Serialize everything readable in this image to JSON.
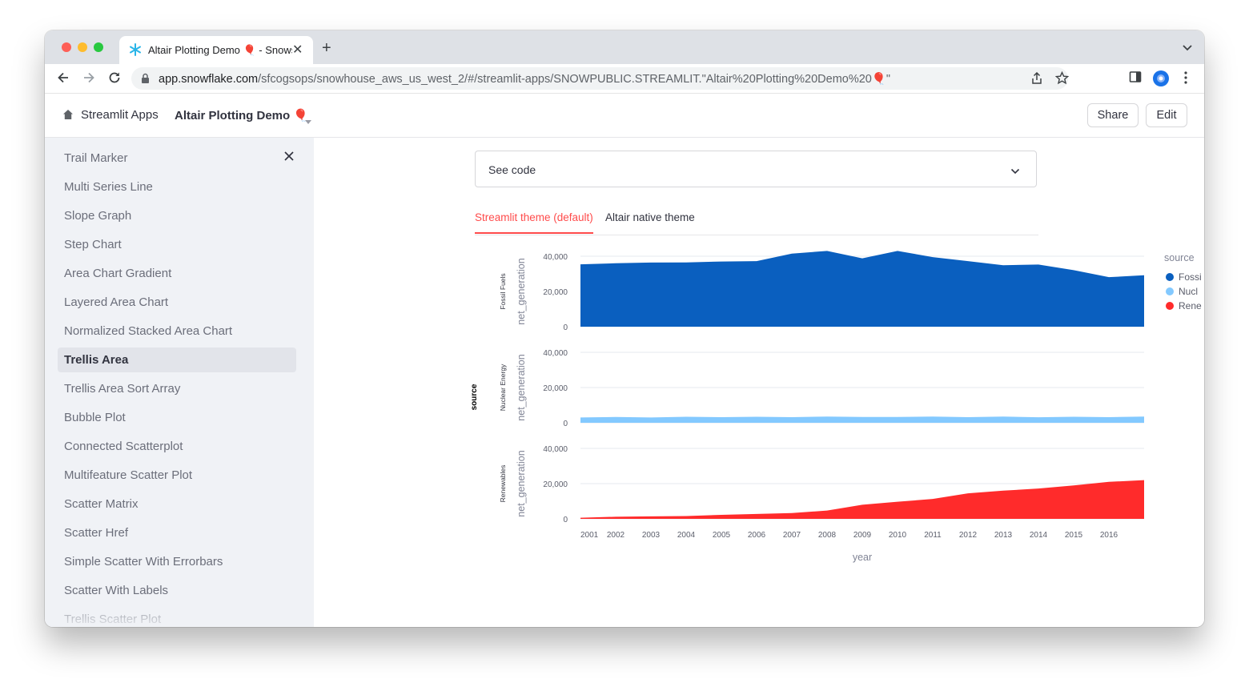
{
  "browser": {
    "tab_title": "Altair Plotting Demo 🎈 - Snowsight",
    "url_host": "app.snowflake.com",
    "url_path": "/sfcogsops/snowhouse_aws_us_west_2/#/streamlit-apps/SNOWPUBLIC.STREAMLIT.\"Altair%20Plotting%20Demo%20🎈\""
  },
  "header": {
    "home_label": "Streamlit Apps",
    "app_title": "Altair Plotting Demo 🎈",
    "share_label": "Share",
    "edit_label": "Edit"
  },
  "sidebar": {
    "items": [
      {
        "label": "Trail Marker"
      },
      {
        "label": "Multi Series Line"
      },
      {
        "label": "Slope Graph"
      },
      {
        "label": "Step Chart"
      },
      {
        "label": "Area Chart Gradient"
      },
      {
        "label": "Layered Area Chart"
      },
      {
        "label": "Normalized Stacked Area Chart"
      },
      {
        "label": "Trellis Area",
        "active": true
      },
      {
        "label": "Trellis Area Sort Array"
      },
      {
        "label": "Bubble Plot"
      },
      {
        "label": "Connected Scatterplot"
      },
      {
        "label": "Multifeature Scatter Plot"
      },
      {
        "label": "Scatter Matrix"
      },
      {
        "label": "Scatter Href"
      },
      {
        "label": "Simple Scatter With Errorbars"
      },
      {
        "label": "Scatter With Labels"
      },
      {
        "label": "Trellis Scatter Plot"
      }
    ]
  },
  "main": {
    "expander_label": "See code",
    "tabs": [
      {
        "label": "Streamlit theme (default)",
        "active": true
      },
      {
        "label": "Altair native theme",
        "active": false
      }
    ]
  },
  "chart_data": {
    "type": "area",
    "facet_label": "source",
    "xlabel": "year",
    "ylabel": "net_generation",
    "x": [
      2001,
      2002,
      2003,
      2004,
      2005,
      2006,
      2007,
      2008,
      2009,
      2010,
      2011,
      2012,
      2013,
      2014,
      2015,
      2016,
      2017
    ],
    "x_ticks": [
      "2001",
      "2002",
      "2003",
      "2004",
      "2005",
      "2006",
      "2007",
      "2008",
      "2009",
      "2010",
      "2011",
      "2012",
      "2013",
      "2014",
      "2015",
      "2016"
    ],
    "y_ticks": [
      "0",
      "20,000",
      "40,000"
    ],
    "ylim": [
      0,
      40000
    ],
    "legend_title": "source",
    "legend_position": "right",
    "series": [
      {
        "name": "Fossil Fuels",
        "legend_label": "Fossi",
        "color": "#0a5fbf",
        "values": [
          35400,
          36000,
          36400,
          36500,
          37000,
          37200,
          41500,
          43000,
          38800,
          43000,
          39500,
          37200,
          34900,
          35300,
          32100,
          28100,
          29200
        ]
      },
      {
        "name": "Nuclear Energy",
        "legend_label": "Nucl",
        "color": "#83c9ff",
        "values": [
          3000,
          3300,
          3000,
          3400,
          3200,
          3400,
          3200,
          3500,
          3300,
          3300,
          3500,
          3200,
          3500,
          3100,
          3400,
          3200,
          3500
        ]
      },
      {
        "name": "Renewables",
        "legend_label": "Rene",
        "color": "#ff2b2b",
        "values": [
          600,
          1200,
          1400,
          1600,
          2300,
          2800,
          3300,
          4700,
          8000,
          9700,
          11300,
          14500,
          16000,
          17200,
          19000,
          21000,
          22000
        ]
      }
    ]
  }
}
